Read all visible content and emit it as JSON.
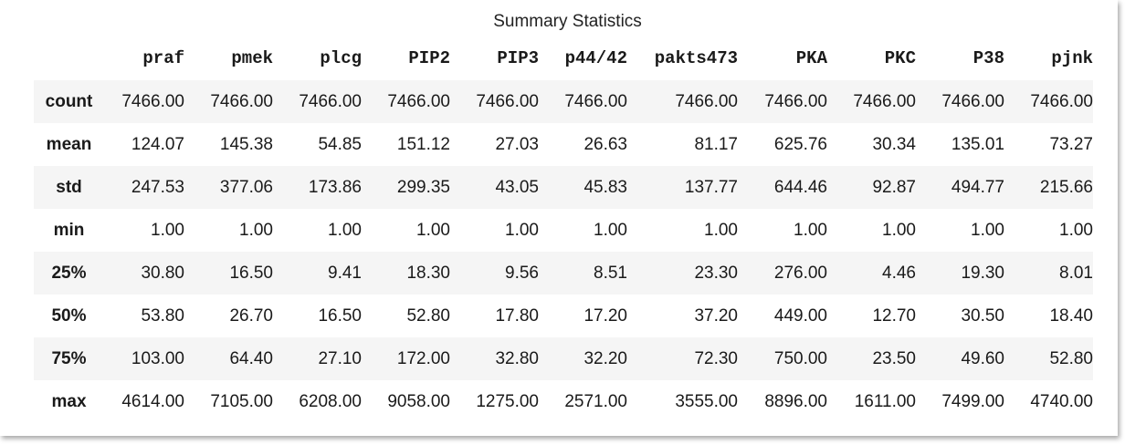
{
  "caption": "Summary Statistics",
  "table": {
    "columns": [
      "praf",
      "pmek",
      "plcg",
      "PIP2",
      "PIP3",
      "p44/42",
      "pakts473",
      "PKA",
      "PKC",
      "P38",
      "pjnk"
    ],
    "rows": [
      {
        "label": "count",
        "values": [
          "7466.00",
          "7466.00",
          "7466.00",
          "7466.00",
          "7466.00",
          "7466.00",
          "7466.00",
          "7466.00",
          "7466.00",
          "7466.00",
          "7466.00"
        ]
      },
      {
        "label": "mean",
        "values": [
          "124.07",
          "145.38",
          "54.85",
          "151.12",
          "27.03",
          "26.63",
          "81.17",
          "625.76",
          "30.34",
          "135.01",
          "73.27"
        ]
      },
      {
        "label": "std",
        "values": [
          "247.53",
          "377.06",
          "173.86",
          "299.35",
          "43.05",
          "45.83",
          "137.77",
          "644.46",
          "92.87",
          "494.77",
          "215.66"
        ]
      },
      {
        "label": "min",
        "values": [
          "1.00",
          "1.00",
          "1.00",
          "1.00",
          "1.00",
          "1.00",
          "1.00",
          "1.00",
          "1.00",
          "1.00",
          "1.00"
        ]
      },
      {
        "label": "25%",
        "values": [
          "30.80",
          "16.50",
          "9.41",
          "18.30",
          "9.56",
          "8.51",
          "23.30",
          "276.00",
          "4.46",
          "19.30",
          "8.01"
        ]
      },
      {
        "label": "50%",
        "values": [
          "53.80",
          "26.70",
          "16.50",
          "52.80",
          "17.80",
          "17.20",
          "37.20",
          "449.00",
          "12.70",
          "30.50",
          "18.40"
        ]
      },
      {
        "label": "75%",
        "values": [
          "103.00",
          "64.40",
          "27.10",
          "172.00",
          "32.80",
          "32.20",
          "72.30",
          "750.00",
          "23.50",
          "49.60",
          "52.80"
        ]
      },
      {
        "label": "max",
        "values": [
          "4614.00",
          "7105.00",
          "6208.00",
          "9058.00",
          "1275.00",
          "2571.00",
          "3555.00",
          "8896.00",
          "1611.00",
          "7499.00",
          "4740.00"
        ]
      }
    ]
  }
}
